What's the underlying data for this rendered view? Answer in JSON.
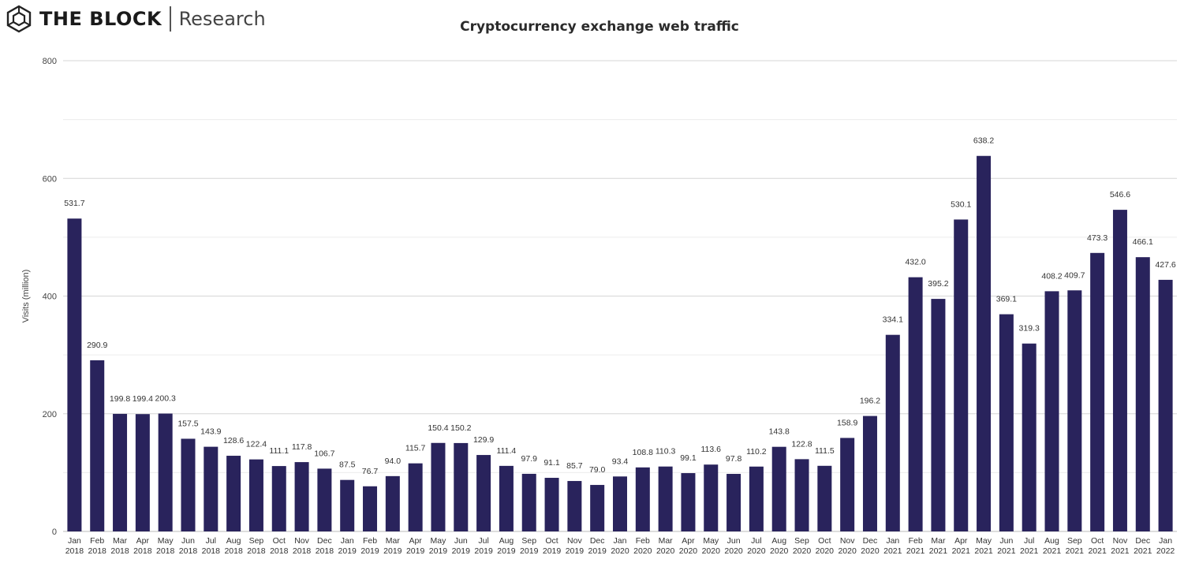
{
  "brand": {
    "name": "THE BLOCK",
    "sub": "Research"
  },
  "chart_data": {
    "type": "bar",
    "title": "Cryptocurrency exchange web traffic",
    "xlabel": "",
    "ylabel": "Visits (million)",
    "ylim": [
      0,
      800
    ],
    "yticks": [
      0,
      200,
      400,
      600,
      800
    ],
    "grid": true,
    "bar_color": "#29235c",
    "categories": [
      [
        "Jan",
        "2018"
      ],
      [
        "Feb",
        "2018"
      ],
      [
        "Mar",
        "2018"
      ],
      [
        "Apr",
        "2018"
      ],
      [
        "May",
        "2018"
      ],
      [
        "Jun",
        "2018"
      ],
      [
        "Jul",
        "2018"
      ],
      [
        "Aug",
        "2018"
      ],
      [
        "Sep",
        "2018"
      ],
      [
        "Oct",
        "2018"
      ],
      [
        "Nov",
        "2018"
      ],
      [
        "Dec",
        "2018"
      ],
      [
        "Jan",
        "2019"
      ],
      [
        "Feb",
        "2019"
      ],
      [
        "Mar",
        "2019"
      ],
      [
        "Apr",
        "2019"
      ],
      [
        "May",
        "2019"
      ],
      [
        "Jun",
        "2019"
      ],
      [
        "Jul",
        "2019"
      ],
      [
        "Aug",
        "2019"
      ],
      [
        "Sep",
        "2019"
      ],
      [
        "Oct",
        "2019"
      ],
      [
        "Nov",
        "2019"
      ],
      [
        "Dec",
        "2019"
      ],
      [
        "Jan",
        "2020"
      ],
      [
        "Feb",
        "2020"
      ],
      [
        "Mar",
        "2020"
      ],
      [
        "Apr",
        "2020"
      ],
      [
        "May",
        "2020"
      ],
      [
        "Jun",
        "2020"
      ],
      [
        "Jul",
        "2020"
      ],
      [
        "Aug",
        "2020"
      ],
      [
        "Sep",
        "2020"
      ],
      [
        "Oct",
        "2020"
      ],
      [
        "Nov",
        "2020"
      ],
      [
        "Dec",
        "2020"
      ],
      [
        "Jan",
        "2021"
      ],
      [
        "Feb",
        "2021"
      ],
      [
        "Mar",
        "2021"
      ],
      [
        "Apr",
        "2021"
      ],
      [
        "May",
        "2021"
      ],
      [
        "Jun",
        "2021"
      ],
      [
        "Jul",
        "2021"
      ],
      [
        "Aug",
        "2021"
      ],
      [
        "Sep",
        "2021"
      ],
      [
        "Oct",
        "2021"
      ],
      [
        "Nov",
        "2021"
      ],
      [
        "Dec",
        "2021"
      ],
      [
        "Jan",
        "2022"
      ]
    ],
    "values": [
      531.7,
      290.9,
      199.8,
      199.4,
      200.3,
      157.5,
      143.9,
      128.6,
      122.4,
      111.1,
      117.8,
      106.7,
      87.5,
      76.7,
      94.0,
      115.7,
      150.4,
      150.2,
      129.9,
      111.4,
      97.9,
      91.1,
      85.7,
      79.0,
      93.4,
      108.8,
      110.3,
      99.1,
      113.6,
      97.8,
      110.2,
      143.8,
      122.8,
      111.5,
      158.9,
      196.2,
      334.1,
      432.0,
      395.2,
      530.1,
      638.2,
      369.1,
      319.3,
      408.2,
      409.7,
      473.3,
      546.6,
      466.1,
      427.6
    ]
  }
}
